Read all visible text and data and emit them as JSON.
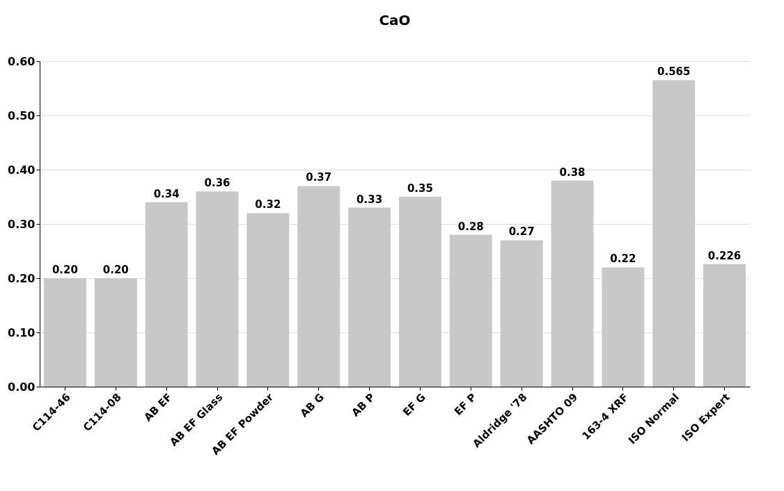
{
  "chart_data": {
    "type": "bar",
    "title": "CaO",
    "categories": [
      "C114-46",
      "C114-08",
      "AB EF",
      "AB EF Glass",
      "AB EF Powder",
      "AB G",
      "AB P",
      "EF G",
      "EF P",
      "Aldridge '78",
      "AASHTO 09",
      "163-4 XRF",
      "ISO Normal",
      "ISO Expert"
    ],
    "values": [
      0.2,
      0.2,
      0.34,
      0.36,
      0.32,
      0.37,
      0.33,
      0.35,
      0.28,
      0.27,
      0.38,
      0.22,
      0.565,
      0.226
    ],
    "value_labels": [
      "0.20",
      "0.20",
      "0.34",
      "0.36",
      "0.32",
      "0.37",
      "0.33",
      "0.35",
      "0.28",
      "0.27",
      "0.38",
      "0.22",
      "0.565",
      "0.226"
    ],
    "color": "#c8c8c8",
    "ylim": [
      0,
      0.6
    ],
    "yticks": [
      {
        "value": 0,
        "label": "0.00"
      },
      {
        "value": 0.1,
        "label": "0.10"
      },
      {
        "value": 0.2,
        "label": "0.20"
      },
      {
        "value": 0.3,
        "label": "0.30"
      },
      {
        "value": 0.4,
        "label": "0.40"
      },
      {
        "value": 0.5,
        "label": "0.50"
      },
      {
        "value": 0.6,
        "label": "0.60"
      }
    ],
    "grid": "y"
  }
}
